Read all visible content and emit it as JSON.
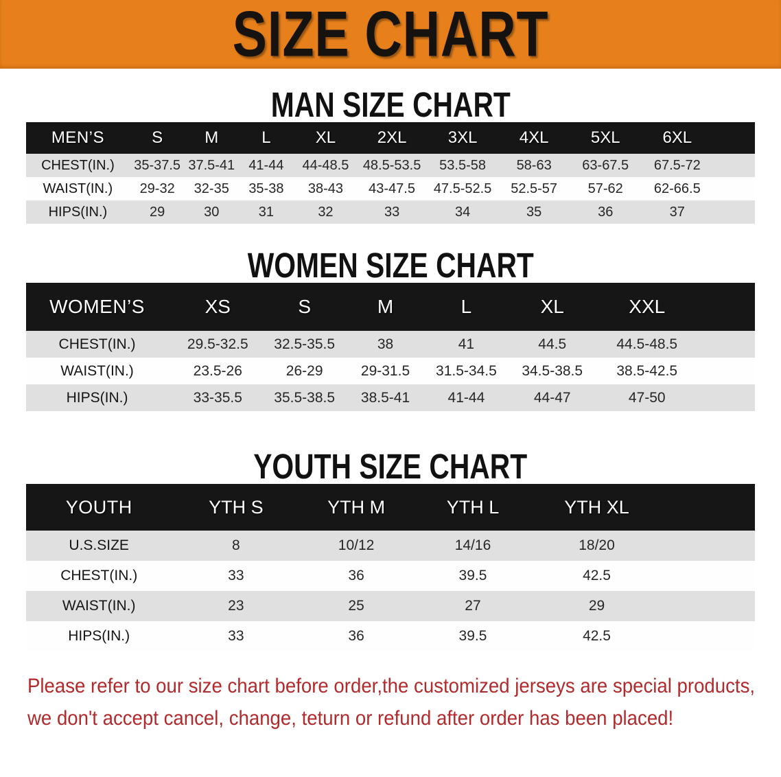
{
  "banner": {
    "title": "SIZE CHART"
  },
  "chart_data": [
    {
      "type": "table",
      "title": "MAN SIZE CHART",
      "group_label": "MEN’S",
      "columns": [
        "S",
        "M",
        "L",
        "XL",
        "2XL",
        "3XL",
        "4XL",
        "5XL",
        "6XL"
      ],
      "rows": [
        {
          "label": "CHEST(IN.)",
          "values": [
            "35-37.5",
            "37.5-41",
            "41-44",
            "44-48.5",
            "48.5-53.5",
            "53.5-58",
            "58-63",
            "63-67.5",
            "67.5-72"
          ]
        },
        {
          "label": "WAIST(IN.)",
          "values": [
            "29-32",
            "32-35",
            "35-38",
            "38-43",
            "43-47.5",
            "47.5-52.5",
            "52.5-57",
            "57-62",
            "62-66.5"
          ]
        },
        {
          "label": "HIPS(IN.)",
          "values": [
            "29",
            "30",
            "31",
            "32",
            "33",
            "34",
            "35",
            "36",
            "37"
          ]
        }
      ]
    },
    {
      "type": "table",
      "title": "WOMEN SIZE CHART",
      "group_label": "WOMEN’S",
      "columns": [
        "XS",
        "S",
        "M",
        "L",
        "XL",
        "XXL"
      ],
      "rows": [
        {
          "label": "CHEST(IN.)",
          "values": [
            "29.5-32.5",
            "32.5-35.5",
            "38",
            "41",
            "44.5",
            "44.5-48.5"
          ]
        },
        {
          "label": "WAIST(IN.)",
          "values": [
            "23.5-26",
            "26-29",
            "29-31.5",
            "31.5-34.5",
            "34.5-38.5",
            "38.5-42.5"
          ]
        },
        {
          "label": "HIPS(IN.)",
          "values": [
            "33-35.5",
            "35.5-38.5",
            "38.5-41",
            "41-44",
            "44-47",
            "47-50"
          ]
        }
      ]
    },
    {
      "type": "table",
      "title": "YOUTH SIZE CHART",
      "group_label": "YOUTH",
      "columns": [
        "YTH S",
        "YTH M",
        "YTH L",
        "YTH XL"
      ],
      "rows": [
        {
          "label": "U.S.SIZE",
          "values": [
            "8",
            "10/12",
            "14/16",
            "18/20"
          ]
        },
        {
          "label": "CHEST(IN.)",
          "values": [
            "33",
            "36",
            "39.5",
            "42.5"
          ]
        },
        {
          "label": "WAIST(IN.)",
          "values": [
            "23",
            "25",
            "27",
            "29"
          ]
        },
        {
          "label": "HIPS(IN.)",
          "values": [
            "33",
            "36",
            "39.5",
            "42.5"
          ]
        }
      ]
    }
  ],
  "footer": {
    "line1": "Please refer to our size chart before order,the customized jerseys are special products,",
    "line2": "we don't accept cancel, change, teturn or refund after order has been placed!"
  },
  "colors": {
    "banner_bg": "#E7801B",
    "banner_text": "#151210",
    "table_header_bg": "#161616",
    "row_alt": "#E0E0E0",
    "row_plain": "#FEFEFE",
    "footer_text": "#B22A2C"
  }
}
